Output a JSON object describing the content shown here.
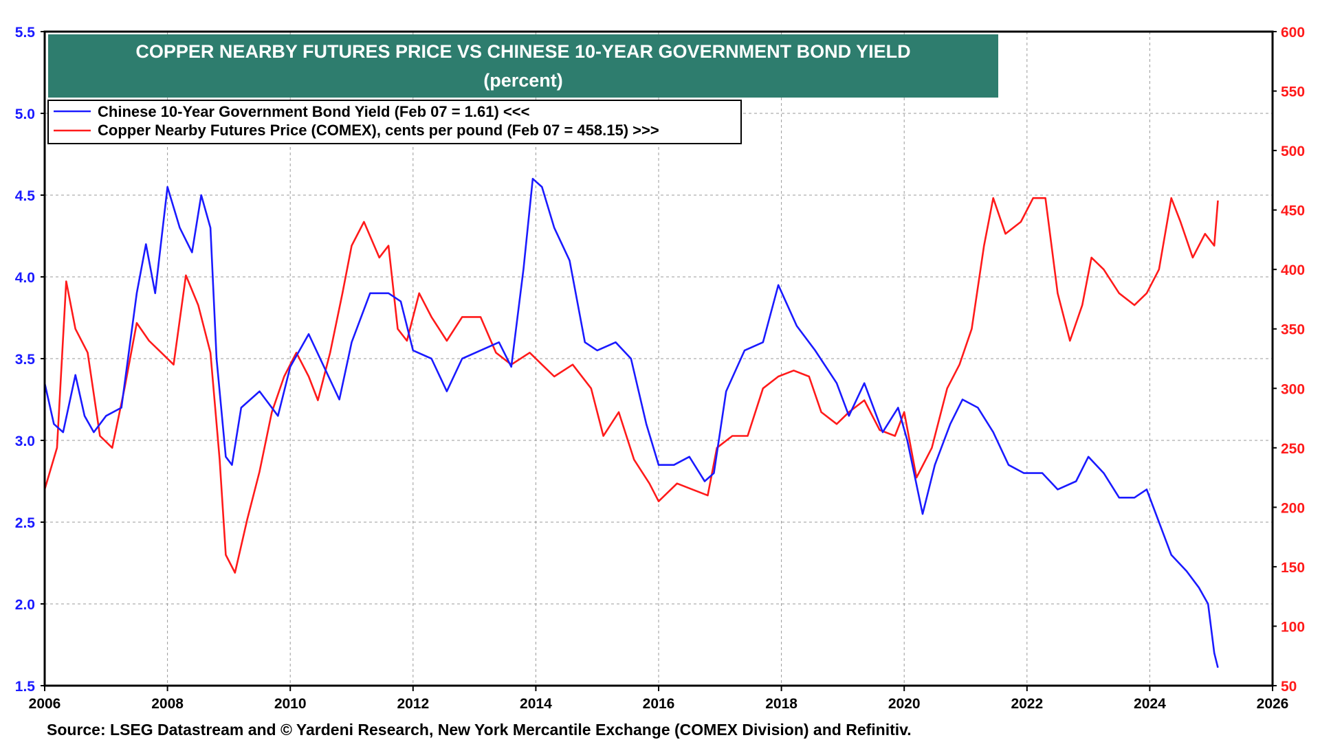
{
  "chart_data": {
    "type": "line",
    "title": "COPPER NEARBY FUTURES PRICE VS CHINESE 10-YEAR GOVERNMENT BOND YIELD",
    "subtitle": "(percent)",
    "x_ticks": [
      "2006",
      "2008",
      "2010",
      "2012",
      "2014",
      "2016",
      "2018",
      "2020",
      "2022",
      "2024",
      "2026"
    ],
    "xlim": [
      2006,
      2026
    ],
    "y_left": {
      "range": [
        1.5,
        5.5
      ],
      "ticks": [
        "5.5",
        "5.0",
        "4.5",
        "4.0",
        "3.5",
        "3.0",
        "2.5",
        "2.0",
        "1.5"
      ],
      "color": "#1a1aff"
    },
    "y_right": {
      "range": [
        50,
        600
      ],
      "ticks": [
        "600",
        "550",
        "500",
        "450",
        "400",
        "350",
        "300",
        "250",
        "200",
        "150",
        "100",
        "50"
      ],
      "color": "#ff1a1a"
    },
    "grid": "dashed",
    "legend_position": "top-left",
    "series": [
      {
        "name": "Chinese 10-Year Government Bond Yield",
        "legend": "Chinese 10-Year Government Bond Yield (Feb 07 = 1.61) <<<",
        "axis": "left",
        "color": "#1a1aff",
        "points": [
          [
            2006.0,
            3.35
          ],
          [
            2006.15,
            3.1
          ],
          [
            2006.3,
            3.05
          ],
          [
            2006.5,
            3.4
          ],
          [
            2006.65,
            3.15
          ],
          [
            2006.8,
            3.05
          ],
          [
            2007.0,
            3.15
          ],
          [
            2007.25,
            3.2
          ],
          [
            2007.5,
            3.9
          ],
          [
            2007.65,
            4.2
          ],
          [
            2007.8,
            3.9
          ],
          [
            2008.0,
            4.55
          ],
          [
            2008.2,
            4.3
          ],
          [
            2008.4,
            4.15
          ],
          [
            2008.55,
            4.5
          ],
          [
            2008.7,
            4.3
          ],
          [
            2008.8,
            3.5
          ],
          [
            2008.95,
            2.9
          ],
          [
            2009.05,
            2.85
          ],
          [
            2009.2,
            3.2
          ],
          [
            2009.5,
            3.3
          ],
          [
            2009.8,
            3.15
          ],
          [
            2010.0,
            3.45
          ],
          [
            2010.3,
            3.65
          ],
          [
            2010.55,
            3.45
          ],
          [
            2010.8,
            3.25
          ],
          [
            2011.0,
            3.6
          ],
          [
            2011.3,
            3.9
          ],
          [
            2011.6,
            3.9
          ],
          [
            2011.8,
            3.85
          ],
          [
            2012.0,
            3.55
          ],
          [
            2012.3,
            3.5
          ],
          [
            2012.55,
            3.3
          ],
          [
            2012.8,
            3.5
          ],
          [
            2013.1,
            3.55
          ],
          [
            2013.4,
            3.6
          ],
          [
            2013.6,
            3.45
          ],
          [
            2013.8,
            4.05
          ],
          [
            2013.95,
            4.6
          ],
          [
            2014.1,
            4.55
          ],
          [
            2014.3,
            4.3
          ],
          [
            2014.55,
            4.1
          ],
          [
            2014.8,
            3.6
          ],
          [
            2015.0,
            3.55
          ],
          [
            2015.3,
            3.6
          ],
          [
            2015.55,
            3.5
          ],
          [
            2015.8,
            3.1
          ],
          [
            2016.0,
            2.85
          ],
          [
            2016.25,
            2.85
          ],
          [
            2016.5,
            2.9
          ],
          [
            2016.75,
            2.75
          ],
          [
            2016.9,
            2.8
          ],
          [
            2017.1,
            3.3
          ],
          [
            2017.4,
            3.55
          ],
          [
            2017.7,
            3.6
          ],
          [
            2017.95,
            3.95
          ],
          [
            2018.25,
            3.7
          ],
          [
            2018.55,
            3.55
          ],
          [
            2018.9,
            3.35
          ],
          [
            2019.1,
            3.15
          ],
          [
            2019.35,
            3.35
          ],
          [
            2019.65,
            3.05
          ],
          [
            2019.9,
            3.2
          ],
          [
            2020.05,
            3.0
          ],
          [
            2020.3,
            2.55
          ],
          [
            2020.5,
            2.85
          ],
          [
            2020.75,
            3.1
          ],
          [
            2020.95,
            3.25
          ],
          [
            2021.2,
            3.2
          ],
          [
            2021.45,
            3.05
          ],
          [
            2021.7,
            2.85
          ],
          [
            2021.95,
            2.8
          ],
          [
            2022.25,
            2.8
          ],
          [
            2022.5,
            2.7
          ],
          [
            2022.8,
            2.75
          ],
          [
            2023.0,
            2.9
          ],
          [
            2023.25,
            2.8
          ],
          [
            2023.5,
            2.65
          ],
          [
            2023.75,
            2.65
          ],
          [
            2023.95,
            2.7
          ],
          [
            2024.15,
            2.5
          ],
          [
            2024.35,
            2.3
          ],
          [
            2024.6,
            2.2
          ],
          [
            2024.8,
            2.1
          ],
          [
            2024.95,
            2.0
          ],
          [
            2025.05,
            1.7
          ],
          [
            2025.11,
            1.61
          ]
        ]
      },
      {
        "name": "Copper Nearby Futures Price (COMEX), cents per pound",
        "legend": "Copper Nearby Futures Price (COMEX), cents per pound (Feb 07 = 458.15) >>>",
        "axis": "right",
        "color": "#ff1a1a",
        "points": [
          [
            2006.0,
            215
          ],
          [
            2006.2,
            250
          ],
          [
            2006.35,
            390
          ],
          [
            2006.5,
            350
          ],
          [
            2006.7,
            330
          ],
          [
            2006.9,
            260
          ],
          [
            2007.1,
            250
          ],
          [
            2007.3,
            300
          ],
          [
            2007.5,
            355
          ],
          [
            2007.7,
            340
          ],
          [
            2007.9,
            330
          ],
          [
            2008.1,
            320
          ],
          [
            2008.3,
            395
          ],
          [
            2008.5,
            370
          ],
          [
            2008.7,
            330
          ],
          [
            2008.85,
            240
          ],
          [
            2008.95,
            160
          ],
          [
            2009.1,
            145
          ],
          [
            2009.3,
            190
          ],
          [
            2009.5,
            230
          ],
          [
            2009.7,
            280
          ],
          [
            2009.9,
            310
          ],
          [
            2010.1,
            330
          ],
          [
            2010.3,
            310
          ],
          [
            2010.45,
            290
          ],
          [
            2010.65,
            330
          ],
          [
            2010.85,
            380
          ],
          [
            2011.0,
            420
          ],
          [
            2011.2,
            440
          ],
          [
            2011.45,
            410
          ],
          [
            2011.6,
            420
          ],
          [
            2011.75,
            350
          ],
          [
            2011.9,
            340
          ],
          [
            2012.1,
            380
          ],
          [
            2012.3,
            360
          ],
          [
            2012.55,
            340
          ],
          [
            2012.8,
            360
          ],
          [
            2013.1,
            360
          ],
          [
            2013.35,
            330
          ],
          [
            2013.6,
            320
          ],
          [
            2013.9,
            330
          ],
          [
            2014.1,
            320
          ],
          [
            2014.3,
            310
          ],
          [
            2014.6,
            320
          ],
          [
            2014.9,
            300
          ],
          [
            2015.1,
            260
          ],
          [
            2015.35,
            280
          ],
          [
            2015.6,
            240
          ],
          [
            2015.85,
            220
          ],
          [
            2016.0,
            205
          ],
          [
            2016.3,
            220
          ],
          [
            2016.55,
            215
          ],
          [
            2016.8,
            210
          ],
          [
            2016.95,
            250
          ],
          [
            2017.2,
            260
          ],
          [
            2017.45,
            260
          ],
          [
            2017.7,
            300
          ],
          [
            2017.95,
            310
          ],
          [
            2018.2,
            315
          ],
          [
            2018.45,
            310
          ],
          [
            2018.65,
            280
          ],
          [
            2018.9,
            270
          ],
          [
            2019.1,
            280
          ],
          [
            2019.35,
            290
          ],
          [
            2019.6,
            265
          ],
          [
            2019.85,
            260
          ],
          [
            2020.0,
            280
          ],
          [
            2020.2,
            225
          ],
          [
            2020.45,
            250
          ],
          [
            2020.7,
            300
          ],
          [
            2020.9,
            320
          ],
          [
            2021.1,
            350
          ],
          [
            2021.3,
            420
          ],
          [
            2021.45,
            460
          ],
          [
            2021.65,
            430
          ],
          [
            2021.9,
            440
          ],
          [
            2022.1,
            460
          ],
          [
            2022.3,
            460
          ],
          [
            2022.5,
            380
          ],
          [
            2022.7,
            340
          ],
          [
            2022.9,
            370
          ],
          [
            2023.05,
            410
          ],
          [
            2023.25,
            400
          ],
          [
            2023.5,
            380
          ],
          [
            2023.75,
            370
          ],
          [
            2023.95,
            380
          ],
          [
            2024.15,
            400
          ],
          [
            2024.35,
            460
          ],
          [
            2024.5,
            440
          ],
          [
            2024.7,
            410
          ],
          [
            2024.9,
            430
          ],
          [
            2025.05,
            420
          ],
          [
            2025.11,
            458
          ]
        ]
      }
    ]
  },
  "source": "Source: LSEG Datastream and © Yardeni Research, New York Mercantile Exchange (COMEX Division) and Refinitiv."
}
